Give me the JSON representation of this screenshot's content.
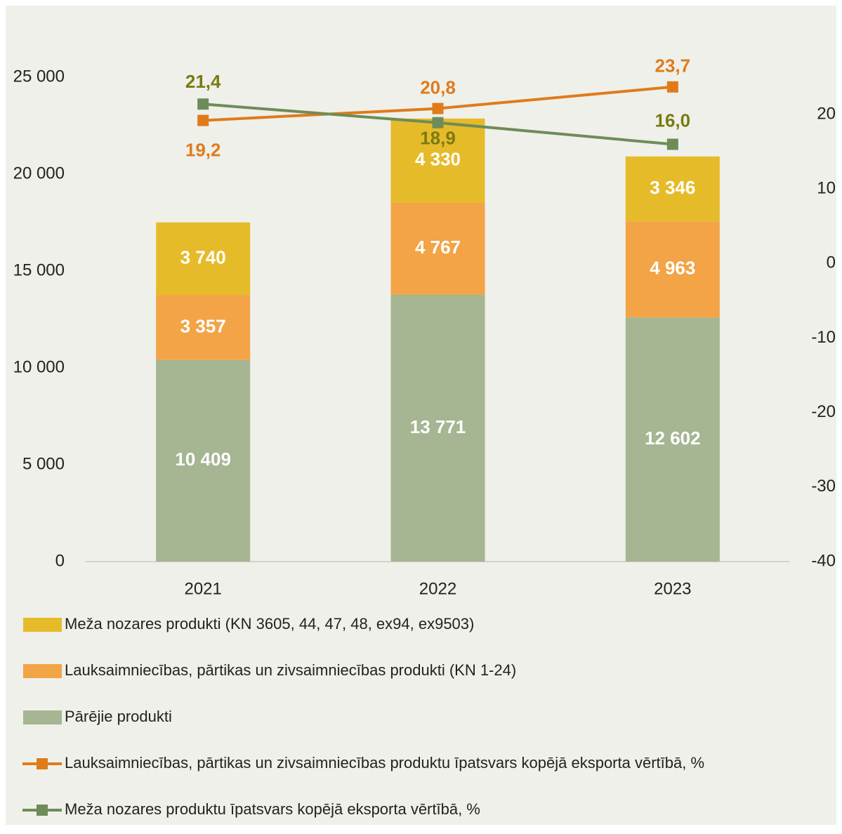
{
  "chart_data": {
    "type": "bar",
    "stacked": true,
    "categories": [
      "2021",
      "2022",
      "2023"
    ],
    "series": [
      {
        "name": "Pārējie produkti",
        "color": "#a6b592",
        "values": [
          10409,
          13771,
          12602
        ],
        "value_labels": [
          "10 409",
          "13 771",
          "12 602"
        ]
      },
      {
        "name": "Lauksaimniecības, pārtikas un zivsaimniecības produkti (KN 1-24)",
        "color": "#f2a446",
        "values": [
          3357,
          4767,
          4963
        ],
        "value_labels": [
          "3 357",
          "4 767",
          "4 963"
        ]
      },
      {
        "name": "Meža nozares produkti (KN 3605, 44, 47, 48, ex94, ex9503)",
        "color": "#e6bb2a",
        "values": [
          3740,
          4330,
          3346
        ],
        "value_labels": [
          "3 740",
          "4 330",
          "3 346"
        ]
      },
      {
        "name": "Lauksaimniecības, pārtikas un zivsaimniecības produktu īpatsvars kopējā eksporta vērtībā, %",
        "type": "line",
        "axis": "y2",
        "color": "#e07b1a",
        "values": [
          19.2,
          20.8,
          23.7
        ],
        "value_labels": [
          "19,2",
          "20,8",
          "23,7"
        ]
      },
      {
        "name": "Meža nozares produktu īpatsvars kopējā eksporta vērtībā, %",
        "type": "line",
        "axis": "y2",
        "color": "#6e8c58",
        "values": [
          21.4,
          18.9,
          16.0
        ],
        "value_labels": [
          "21,4",
          "18,9",
          "16,0"
        ]
      }
    ],
    "ylim": [
      0,
      25000
    ],
    "yticks": [
      0,
      {
        "value": 5000,
        "label": "5 000"
      },
      {
        "value": 10000,
        "label": "10 000"
      },
      {
        "value": 15000,
        "label": "15 000"
      },
      {
        "value": 20000,
        "label": "20 000"
      },
      {
        "value": 25000,
        "label": "25 000"
      }
    ],
    "y2lim": [
      -40,
      25
    ],
    "y2ticks": [
      -40,
      -30,
      -20,
      -10,
      0,
      10,
      20
    ],
    "grid": false
  }
}
